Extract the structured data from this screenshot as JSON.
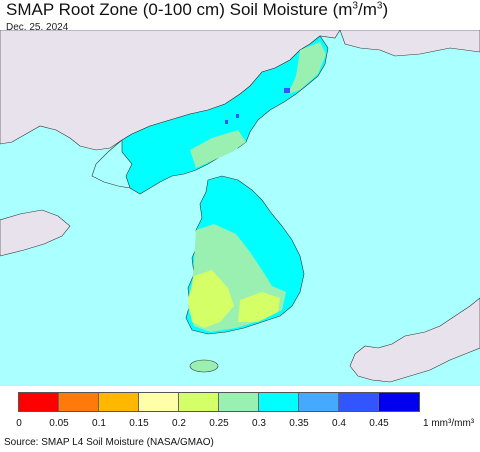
{
  "title": {
    "prefix": "SMAP Root Zone (0-100 cm) Soil Moisture (m",
    "mid": "/m",
    "suffix": ")",
    "sup": "3"
  },
  "date": "Dec. 25, 2024",
  "legend": {
    "colors": [
      "#ff0000",
      "#ff7a0a",
      "#ffb700",
      "#ffffaa",
      "#d4ff66",
      "#99f0b0",
      "#00ffff",
      "#44aaff",
      "#3355ff",
      "#0000ee"
    ],
    "ticks": [
      "0",
      "0.05",
      "0.1",
      "0.15",
      "0.2",
      "0.25",
      "0.3",
      "0.35",
      "0.4",
      "0.45"
    ],
    "unit": "1 mm³/mm³"
  },
  "source": "Source: SMAP L4 Soil Moisture (NASA/GMAO)",
  "map_colors": {
    "sea": "#aaffff",
    "land_outside": "#e8e2ec",
    "wet": "#00ffff",
    "moist": "#99f0b0",
    "dry": "#d4ff66",
    "very_wet": "#3355ff"
  }
}
